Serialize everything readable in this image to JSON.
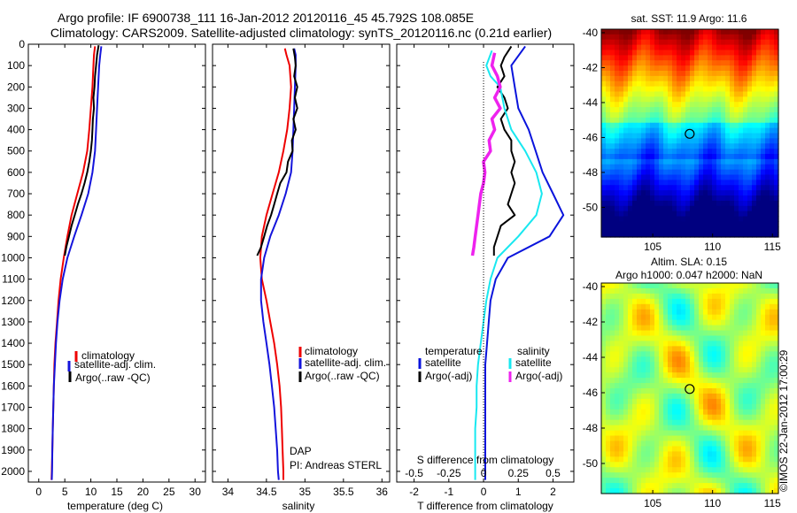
{
  "header": {
    "line1": "Argo profile: IF 6900738_111 16-Jan-2012 20120116_45 45.792S 108.085E",
    "line2": "Climatology: CARS2009. Satellite-adjusted climatology: synTS_20120116.nc (0.21d earlier)"
  },
  "colors": {
    "climatology": "#ee0000",
    "satellite": "#1414dc",
    "argo": "#000000",
    "t_satellite": "#0a14dc",
    "s_satellite": "#18e8f0",
    "s_argo": "#ee22ee"
  },
  "chart_data": [
    {
      "type": "line",
      "panel": "temperature",
      "xlabel": "temperature (deg C)",
      "ylabel": "",
      "xlim": [
        -2,
        32
      ],
      "ylim": [
        2050,
        0
      ],
      "x_ticks": [
        "0",
        "5",
        "10",
        "15",
        "20",
        "25",
        "30"
      ],
      "y_ticks": [
        "0",
        "100",
        "200",
        "300",
        "400",
        "500",
        "600",
        "700",
        "800",
        "900",
        "1000",
        "1100",
        "1200",
        "1300",
        "1400",
        "1500",
        "1600",
        "1700",
        "1800",
        "1900",
        "2000"
      ],
      "legend": [
        "climatology",
        "satellite-adj. clim.",
        "Argo(..raw -QC)"
      ],
      "series": [
        {
          "name": "climatology",
          "color_key": "climatology",
          "points": [
            [
              10.8,
              10
            ],
            [
              10.6,
              50
            ],
            [
              10.5,
              100
            ],
            [
              10.3,
              200
            ],
            [
              10.0,
              300
            ],
            [
              9.7,
              400
            ],
            [
              9.3,
              500
            ],
            [
              8.5,
              600
            ],
            [
              7.4,
              700
            ],
            [
              6.3,
              800
            ],
            [
              5.5,
              900
            ],
            [
              4.8,
              1000
            ],
            [
              4.2,
              1100
            ],
            [
              3.8,
              1200
            ],
            [
              3.5,
              1300
            ],
            [
              3.2,
              1400
            ],
            [
              3.0,
              1500
            ],
            [
              2.9,
              1600
            ],
            [
              2.8,
              1700
            ],
            [
              2.7,
              1800
            ],
            [
              2.6,
              1900
            ],
            [
              2.5,
              2000
            ],
            [
              2.45,
              2040
            ]
          ]
        },
        {
          "name": "satellite-adj. clim.",
          "color_key": "satellite",
          "points": [
            [
              12.0,
              10
            ],
            [
              11.8,
              50
            ],
            [
              11.6,
              100
            ],
            [
              11.4,
              200
            ],
            [
              11.2,
              300
            ],
            [
              11.0,
              400
            ],
            [
              10.8,
              500
            ],
            [
              10.3,
              600
            ],
            [
              9.5,
              700
            ],
            [
              8.2,
              800
            ],
            [
              6.8,
              900
            ],
            [
              5.5,
              1000
            ],
            [
              4.6,
              1100
            ],
            [
              4.0,
              1200
            ],
            [
              3.6,
              1300
            ],
            [
              3.3,
              1400
            ],
            [
              3.1,
              1500
            ],
            [
              2.9,
              1600
            ],
            [
              2.8,
              1700
            ],
            [
              2.7,
              1800
            ],
            [
              2.6,
              1900
            ],
            [
              2.55,
              2000
            ],
            [
              2.5,
              2040
            ]
          ]
        },
        {
          "name": "Argo(..raw -QC)",
          "color_key": "argo",
          "points": [
            [
              11.5,
              5
            ],
            [
              11.2,
              50
            ],
            [
              11.0,
              100
            ],
            [
              10.8,
              150
            ],
            [
              10.7,
              200
            ],
            [
              10.5,
              250
            ],
            [
              10.6,
              300
            ],
            [
              10.4,
              350
            ],
            [
              10.3,
              400
            ],
            [
              10.2,
              450
            ],
            [
              10.0,
              500
            ],
            [
              9.7,
              550
            ],
            [
              9.3,
              600
            ],
            [
              8.8,
              650
            ],
            [
              8.2,
              700
            ],
            [
              7.5,
              750
            ],
            [
              6.9,
              800
            ],
            [
              6.3,
              850
            ],
            [
              5.8,
              900
            ],
            [
              5.3,
              950
            ],
            [
              5.0,
              990
            ]
          ]
        }
      ]
    },
    {
      "type": "line",
      "panel": "salinity",
      "xlabel": "salinity",
      "xlim": [
        33.8,
        36.1
      ],
      "ylim": [
        2050,
        0
      ],
      "x_ticks": [
        "34",
        "34.5",
        "35",
        "35.5",
        "36"
      ],
      "legend": [
        "climatology",
        "satellite-adj. clim.",
        "Argo(..raw -QC)"
      ],
      "annotation": [
        "DAP",
        "PI: Andreas STERL"
      ],
      "series": [
        {
          "name": "climatology",
          "color_key": "climatology",
          "points": [
            [
              34.74,
              20
            ],
            [
              34.76,
              50
            ],
            [
              34.8,
              100
            ],
            [
              34.82,
              200
            ],
            [
              34.8,
              300
            ],
            [
              34.77,
              400
            ],
            [
              34.72,
              500
            ],
            [
              34.66,
              600
            ],
            [
              34.58,
              700
            ],
            [
              34.5,
              800
            ],
            [
              34.44,
              900
            ],
            [
              34.42,
              1000
            ],
            [
              34.44,
              1100
            ],
            [
              34.5,
              1200
            ],
            [
              34.55,
              1300
            ],
            [
              34.6,
              1400
            ],
            [
              34.64,
              1500
            ],
            [
              34.67,
              1600
            ],
            [
              34.69,
              1700
            ],
            [
              34.7,
              1800
            ],
            [
              34.71,
              1900
            ],
            [
              34.72,
              2000
            ],
            [
              34.72,
              2040
            ]
          ]
        },
        {
          "name": "satellite-adj. clim.",
          "color_key": "satellite",
          "points": [
            [
              34.86,
              20
            ],
            [
              34.88,
              50
            ],
            [
              34.88,
              100
            ],
            [
              34.87,
              200
            ],
            [
              34.86,
              300
            ],
            [
              34.85,
              400
            ],
            [
              34.84,
              500
            ],
            [
              34.82,
              600
            ],
            [
              34.75,
              700
            ],
            [
              34.66,
              800
            ],
            [
              34.55,
              900
            ],
            [
              34.47,
              1000
            ],
            [
              34.43,
              1100
            ],
            [
              34.43,
              1200
            ],
            [
              34.46,
              1300
            ],
            [
              34.5,
              1400
            ],
            [
              34.54,
              1500
            ],
            [
              34.57,
              1600
            ],
            [
              34.6,
              1700
            ],
            [
              34.62,
              1800
            ],
            [
              34.64,
              1900
            ],
            [
              34.65,
              2000
            ],
            [
              34.66,
              2040
            ]
          ]
        },
        {
          "name": "Argo(..raw -QC)",
          "color_key": "argo",
          "points": [
            [
              34.85,
              20
            ],
            [
              34.87,
              60
            ],
            [
              34.88,
              100
            ],
            [
              34.86,
              150
            ],
            [
              34.9,
              200
            ],
            [
              34.87,
              250
            ],
            [
              34.9,
              300
            ],
            [
              34.85,
              350
            ],
            [
              34.88,
              400
            ],
            [
              34.83,
              450
            ],
            [
              34.84,
              500
            ],
            [
              34.78,
              550
            ],
            [
              34.76,
              600
            ],
            [
              34.68,
              650
            ],
            [
              34.64,
              700
            ],
            [
              34.6,
              750
            ],
            [
              34.56,
              800
            ],
            [
              34.51,
              850
            ],
            [
              34.47,
              900
            ],
            [
              34.43,
              950
            ],
            [
              34.38,
              990
            ]
          ]
        }
      ]
    },
    {
      "type": "line",
      "panel": "differences",
      "xlabel": "T difference from climatology",
      "xlabel_top": "S difference from climatology",
      "xlim": [
        -2.5,
        2.6
      ],
      "ylim": [
        2050,
        0
      ],
      "x_ticks": [
        "-2",
        "-1",
        "0",
        "1",
        "2"
      ],
      "x2_ticks": [
        "-0.5",
        "-0.25",
        "0",
        "0.25",
        "0.5"
      ],
      "legend_left_title": "temperature",
      "legend_right_title": "salinity",
      "legend_left": [
        "satellite",
        "Argo(-adj)"
      ],
      "legend_right": [
        "satellite",
        "Argo(-adj)"
      ],
      "series": [
        {
          "name": "temperature satellite",
          "color_key": "t_satellite",
          "points": [
            [
              1.2,
              10
            ],
            [
              0.8,
              100
            ],
            [
              0.9,
              200
            ],
            [
              1.0,
              300
            ],
            [
              1.3,
              400
            ],
            [
              1.5,
              500
            ],
            [
              1.7,
              600
            ],
            [
              2.0,
              700
            ],
            [
              2.3,
              800
            ],
            [
              1.9,
              900
            ],
            [
              0.7,
              1000
            ],
            [
              0.35,
              1100
            ],
            [
              0.2,
              1200
            ],
            [
              0.15,
              1300
            ],
            [
              0.1,
              1400
            ],
            [
              0.05,
              1500
            ],
            [
              0.05,
              1600
            ],
            [
              0.05,
              1700
            ],
            [
              0.05,
              1800
            ],
            [
              0.05,
              1900
            ],
            [
              0.05,
              2000
            ],
            [
              0.05,
              2040
            ]
          ]
        },
        {
          "name": "temperature Argo(-adj)",
          "color_key": "argo",
          "points": [
            [
              0.8,
              10
            ],
            [
              0.6,
              60
            ],
            [
              0.5,
              100
            ],
            [
              0.6,
              150
            ],
            [
              0.4,
              200
            ],
            [
              0.6,
              250
            ],
            [
              0.7,
              300
            ],
            [
              0.5,
              350
            ],
            [
              0.6,
              400
            ],
            [
              0.8,
              450
            ],
            [
              0.8,
              500
            ],
            [
              0.9,
              550
            ],
            [
              0.8,
              600
            ],
            [
              0.9,
              650
            ],
            [
              0.8,
              700
            ],
            [
              0.7,
              750
            ],
            [
              0.9,
              800
            ],
            [
              0.5,
              850
            ],
            [
              0.4,
              900
            ],
            [
              0.3,
              950
            ],
            [
              0.3,
              990
            ]
          ]
        },
        {
          "name": "salinity satellite",
          "color_key": "s_satellite",
          "points": [
            [
              0.06,
              30
            ],
            [
              0.02,
              100
            ],
            [
              0.05,
              150
            ],
            [
              0.12,
              200
            ],
            [
              0.15,
              300
            ],
            [
              0.2,
              400
            ],
            [
              0.3,
              500
            ],
            [
              0.38,
              600
            ],
            [
              0.42,
              700
            ],
            [
              0.38,
              800
            ],
            [
              0.25,
              900
            ],
            [
              0.1,
              1000
            ],
            [
              0.05,
              1100
            ],
            [
              0.02,
              1200
            ],
            [
              0.0,
              1300
            ],
            [
              -0.02,
              1400
            ],
            [
              -0.04,
              1500
            ],
            [
              -0.05,
              1600
            ],
            [
              -0.05,
              1700
            ],
            [
              -0.06,
              1800
            ],
            [
              -0.06,
              1900
            ],
            [
              -0.06,
              2000
            ],
            [
              -0.06,
              2040
            ]
          ]
        },
        {
          "name": "salinity Argo(-adj)",
          "color_key": "s_argo",
          "points": [
            [
              0.08,
              40
            ],
            [
              0.06,
              100
            ],
            [
              0.1,
              150
            ],
            [
              0.12,
              200
            ],
            [
              0.08,
              250
            ],
            [
              0.12,
              300
            ],
            [
              0.06,
              350
            ],
            [
              0.08,
              400
            ],
            [
              0.04,
              450
            ],
            [
              0.05,
              500
            ],
            [
              0.0,
              550
            ],
            [
              0.01,
              600
            ],
            [
              0.0,
              650
            ],
            [
              -0.02,
              700
            ],
            [
              -0.03,
              750
            ],
            [
              -0.04,
              800
            ],
            [
              -0.05,
              850
            ],
            [
              -0.06,
              900
            ],
            [
              -0.07,
              950
            ],
            [
              -0.08,
              990
            ]
          ]
        }
      ]
    },
    {
      "type": "heatmap",
      "panel": "sst_map",
      "title": "sat. SST: 11.9  Argo: 11.6",
      "xlim": [
        100.7,
        115.5
      ],
      "ylim": [
        -51.7,
        -39.8
      ],
      "x_ticks": [
        "105",
        "110",
        "115"
      ],
      "y_ticks": [
        "-40",
        "-42",
        "-44",
        "-46",
        "-48",
        "-50"
      ],
      "marker": {
        "lon": 108.085,
        "lat": -45.792
      }
    },
    {
      "type": "heatmap",
      "panel": "sla_map",
      "title_line1": "Altim. SLA: 0.15",
      "title_line2": "Argo h1000: 0.047 h2000: NaN",
      "xlim": [
        100.7,
        115.5
      ],
      "ylim": [
        -51.7,
        -39.8
      ],
      "x_ticks": [
        "105",
        "110",
        "115"
      ],
      "y_ticks": [
        "-40",
        "-42",
        "-44",
        "-46",
        "-48",
        "-50"
      ],
      "marker": {
        "lon": 108.085,
        "lat": -45.792
      }
    }
  ],
  "footer": {
    "stamp": "©IMOS 22-Jan-2012 17:00:29"
  }
}
